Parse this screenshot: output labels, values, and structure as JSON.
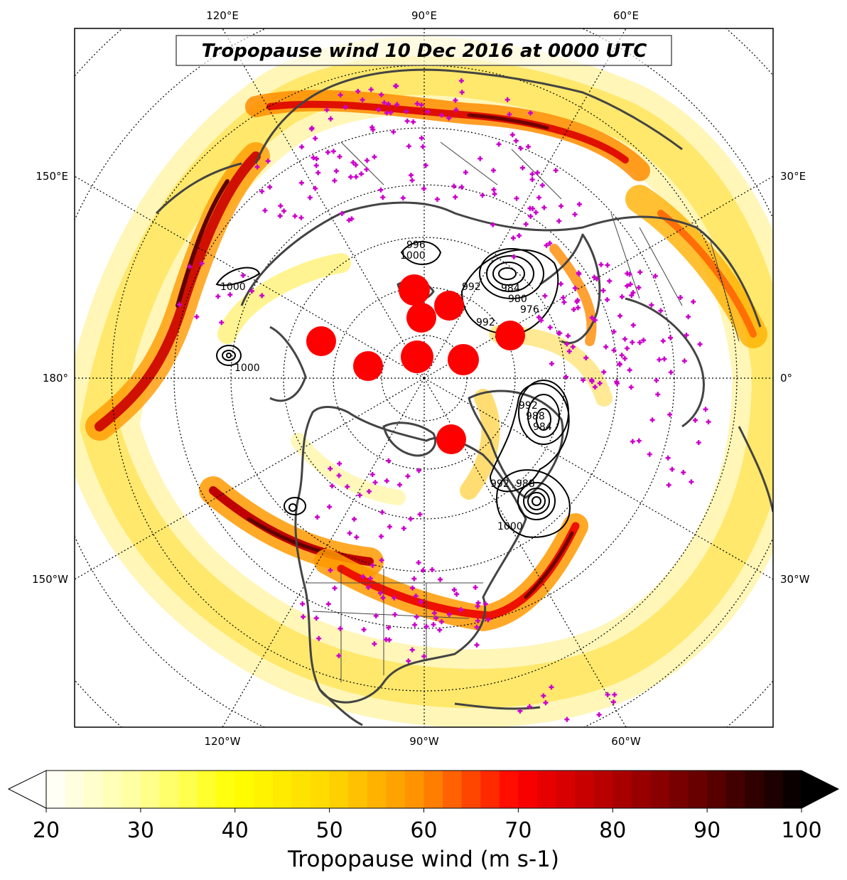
{
  "title": "Tropopause wind 10 Dec 2016 at 0000 UTC",
  "longitude_labels": {
    "top": [
      "120°E",
      "90°E",
      "60°E"
    ],
    "bottom": [
      "120°W",
      "90°W",
      "60°W"
    ],
    "left": [
      "150°E",
      "180°",
      "150°W"
    ],
    "right": [
      "30°E",
      "0°",
      "30°W"
    ]
  },
  "colorbar": {
    "label": "Tropopause wind (m s-1)",
    "min": 20,
    "max": 100,
    "step": 2,
    "ticks": [
      20,
      30,
      40,
      50,
      60,
      70,
      80,
      90,
      100
    ],
    "colormap": [
      "#ffffff",
      "#ffff99",
      "#ffff00",
      "#ffd700",
      "#ff8c00",
      "#ff0000",
      "#b00000",
      "#600000",
      "#000000"
    ]
  },
  "map": {
    "projection": "north polar stereographic",
    "background": "#ffffff",
    "coastline_color": "#444444",
    "graticule_style": "dotted",
    "station_marker_color": "#cc00cc",
    "highlight_marker_color": "#ff0000"
  },
  "pressure_contours": {
    "labels": [
      "996",
      "1000",
      "1000",
      "1000",
      "992",
      "992",
      "992",
      "988",
      "984",
      "984",
      "980",
      "976",
      "992",
      "988",
      "1000"
    ],
    "color": "#000000"
  }
}
